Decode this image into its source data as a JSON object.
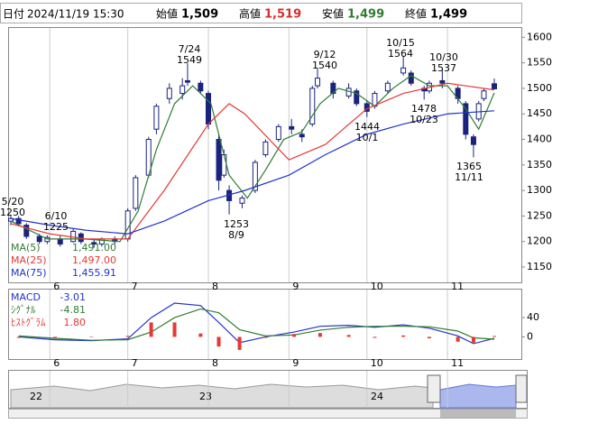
{
  "header": {
    "date_label": "日付",
    "date": "2024/11/19 15:30",
    "open_label": "始値",
    "open": "1,509",
    "high_label": "高値",
    "high": "1,519",
    "low_label": "安値",
    "low": "1,499",
    "close_label": "終値",
    "close": "1,499"
  },
  "chart_data": [
    {
      "type": "candlestick",
      "xlim": [
        "2024/05/17",
        "2024/11/19"
      ],
      "xticks": [
        {
          "value": "2024/06/01",
          "label": "6"
        },
        {
          "value": "2024/07/01",
          "label": "7"
        },
        {
          "value": "2024/08/01",
          "label": "8"
        },
        {
          "value": "2024/09/01",
          "label": "9"
        },
        {
          "value": "2024/10/01",
          "label": "10"
        },
        {
          "value": "2024/11/01",
          "label": "11"
        }
      ],
      "ylim": [
        1120,
        1620
      ],
      "yticks": [
        1150,
        1200,
        1250,
        1300,
        1350,
        1400,
        1450,
        1500,
        1550,
        1600
      ],
      "up_color": "#ffffff",
      "down_color": "#1a237e",
      "edge_color": "#1a237e",
      "x": [
        "2024/05/17",
        "2024/05/20",
        "2024/05/23",
        "2024/05/28",
        "2024/05/31",
        "2024/06/05",
        "2024/06/10",
        "2024/06/13",
        "2024/06/18",
        "2024/06/21",
        "2024/06/26",
        "2024/07/01",
        "2024/07/04",
        "2024/07/09",
        "2024/07/12",
        "2024/07/17",
        "2024/07/22",
        "2024/07/24",
        "2024/07/29",
        "2024/08/01",
        "2024/08/05",
        "2024/08/07",
        "2024/08/09",
        "2024/08/14",
        "2024/08/19",
        "2024/08/23",
        "2024/08/28",
        "2024/09/02",
        "2024/09/06",
        "2024/09/10",
        "2024/09/12",
        "2024/09/18",
        "2024/09/24",
        "2024/09/27",
        "2024/10/01",
        "2024/10/04",
        "2024/10/09",
        "2024/10/15",
        "2024/10/18",
        "2024/10/23",
        "2024/10/25",
        "2024/10/30",
        "2024/11/05",
        "2024/11/08",
        "2024/11/11",
        "2024/11/13",
        "2024/11/15",
        "2024/11/19"
      ],
      "open": [
        1240,
        1245,
        1232,
        1210,
        1200,
        1205,
        1200,
        1215,
        1198,
        1195,
        1205,
        1205,
        1265,
        1330,
        1420,
        1480,
        1490,
        1515,
        1510,
        1490,
        1400,
        1330,
        1300,
        1275,
        1300,
        1370,
        1400,
        1425,
        1410,
        1430,
        1505,
        1510,
        1485,
        1495,
        1470,
        1465,
        1495,
        1530,
        1530,
        1500,
        1495,
        1515,
        1500,
        1470,
        1405,
        1440,
        1480,
        1509
      ],
      "high": [
        1252,
        1250,
        1236,
        1215,
        1212,
        1212,
        1225,
        1218,
        1205,
        1208,
        1210,
        1265,
        1330,
        1405,
        1470,
        1510,
        1520,
        1549,
        1515,
        1495,
        1410,
        1380,
        1310,
        1290,
        1360,
        1400,
        1430,
        1440,
        1420,
        1505,
        1540,
        1515,
        1510,
        1500,
        1475,
        1495,
        1515,
        1564,
        1535,
        1505,
        1515,
        1537,
        1505,
        1475,
        1410,
        1475,
        1500,
        1519
      ],
      "low": [
        1232,
        1230,
        1205,
        1195,
        1195,
        1190,
        1198,
        1195,
        1188,
        1190,
        1195,
        1200,
        1260,
        1325,
        1410,
        1470,
        1478,
        1505,
        1490,
        1420,
        1300,
        1325,
        1253,
        1265,
        1295,
        1365,
        1395,
        1410,
        1395,
        1425,
        1500,
        1480,
        1480,
        1465,
        1444,
        1460,
        1490,
        1525,
        1505,
        1478,
        1490,
        1500,
        1470,
        1400,
        1365,
        1435,
        1475,
        1499
      ],
      "close": [
        1245,
        1235,
        1210,
        1200,
        1208,
        1195,
        1220,
        1200,
        1195,
        1205,
        1200,
        1260,
        1325,
        1400,
        1465,
        1500,
        1505,
        1512,
        1495,
        1430,
        1320,
        1370,
        1280,
        1285,
        1355,
        1395,
        1425,
        1420,
        1405,
        1500,
        1520,
        1490,
        1500,
        1470,
        1455,
        1490,
        1510,
        1540,
        1510,
        1495,
        1510,
        1510,
        1480,
        1410,
        1390,
        1470,
        1495,
        1499
      ],
      "series": [
        {
          "name": "MA(5)",
          "legend_value": "1,491.00",
          "color": "#2e7d32",
          "x": [
            "2024/05/17",
            "2024/05/31",
            "2024/06/14",
            "2024/06/28",
            "2024/07/05",
            "2024/07/12",
            "2024/07/19",
            "2024/07/26",
            "2024/08/02",
            "2024/08/09",
            "2024/08/16",
            "2024/08/23",
            "2024/08/30",
            "2024/09/06",
            "2024/09/13",
            "2024/09/20",
            "2024/09/27",
            "2024/10/04",
            "2024/10/11",
            "2024/10/18",
            "2024/10/25",
            "2024/11/01",
            "2024/11/08",
            "2024/11/13",
            "2024/11/19"
          ],
          "values": [
            1240,
            1205,
            1205,
            1200,
            1260,
            1380,
            1470,
            1505,
            1470,
            1330,
            1285,
            1340,
            1400,
            1415,
            1470,
            1500,
            1490,
            1465,
            1500,
            1525,
            1505,
            1505,
            1460,
            1420,
            1491
          ]
        },
        {
          "name": "MA(25)",
          "legend_value": "1,497.00",
          "color": "#e53935",
          "x": [
            "2024/05/17",
            "2024/06/01",
            "2024/06/15",
            "2024/07/01",
            "2024/07/15",
            "2024/08/01",
            "2024/08/09",
            "2024/08/15",
            "2024/09/01",
            "2024/09/15",
            "2024/10/01",
            "2024/10/15",
            "2024/11/01",
            "2024/11/19"
          ],
          "values": [
            1235,
            1215,
            1205,
            1205,
            1300,
            1430,
            1470,
            1450,
            1360,
            1390,
            1460,
            1490,
            1510,
            1497
          ]
        },
        {
          "name": "MA(75)",
          "legend_value": "1,455.91",
          "color": "#2233cc",
          "x": [
            "2024/05/17",
            "2024/06/01",
            "2024/06/15",
            "2024/07/01",
            "2024/07/15",
            "2024/08/01",
            "2024/08/15",
            "2024/09/01",
            "2024/09/15",
            "2024/10/01",
            "2024/10/15",
            "2024/11/01",
            "2024/11/19"
          ],
          "values": [
            1245,
            1232,
            1222,
            1215,
            1240,
            1280,
            1300,
            1330,
            1370,
            1410,
            1430,
            1450,
            1456
          ]
        }
      ],
      "annotations": [
        {
          "lines": [
            "5/20",
            "1250"
          ]
        },
        {
          "lines": [
            "6/10",
            "1225"
          ]
        },
        {
          "lines": [
            "7/24",
            "1549"
          ]
        },
        {
          "lines": [
            "1253",
            "8/9"
          ]
        },
        {
          "lines": [
            "9/12",
            "1540"
          ]
        },
        {
          "lines": [
            "1444",
            "10/1"
          ]
        },
        {
          "lines": [
            "10/15",
            "1564"
          ]
        },
        {
          "lines": [
            "1478",
            "10/23"
          ]
        },
        {
          "lines": [
            "10/30",
            "1537"
          ]
        },
        {
          "lines": [
            "1365",
            "11/11"
          ]
        }
      ]
    },
    {
      "type": "macd",
      "ylim": [
        -46,
        100
      ],
      "yticks": [
        0,
        40
      ],
      "x": [
        "2024/05/20",
        "2024/06/03",
        "2024/06/17",
        "2024/07/01",
        "2024/07/10",
        "2024/07/19",
        "2024/07/29",
        "2024/08/05",
        "2024/08/13",
        "2024/08/23",
        "2024/09/03",
        "2024/09/13",
        "2024/09/24",
        "2024/10/04",
        "2024/10/15",
        "2024/10/25",
        "2024/11/05",
        "2024/11/11",
        "2024/11/19"
      ],
      "series": [
        {
          "name": "MACD",
          "legend_value": "-3.01",
          "color": "#2233cc",
          "values": [
            0,
            -6,
            -8,
            -4,
            40,
            70,
            65,
            30,
            -12,
            0,
            10,
            22,
            24,
            20,
            25,
            18,
            2,
            -14,
            -3.01
          ]
        },
        {
          "name": "ｼｸﾞﾅﾙ",
          "legend_value": "-4.81",
          "color": "#2e7d32",
          "values": [
            2,
            -3,
            -7,
            -6,
            10,
            40,
            58,
            50,
            15,
            2,
            4,
            14,
            20,
            22,
            22,
            21,
            12,
            -2,
            -4.81
          ]
        },
        {
          "name": "ﾋｽﾄｸﾞﾗﾑ",
          "legend_value": "1.80",
          "color": "#e53935",
          "bars": true,
          "values": [
            -2,
            -3,
            -1,
            2,
            30,
            30,
            7,
            -20,
            -27,
            -2,
            6,
            8,
            4,
            -2,
            3,
            -3,
            -10,
            -12,
            1.8
          ]
        }
      ]
    }
  ],
  "navigator": {
    "labels": [
      "22",
      "23",
      "24"
    ]
  }
}
